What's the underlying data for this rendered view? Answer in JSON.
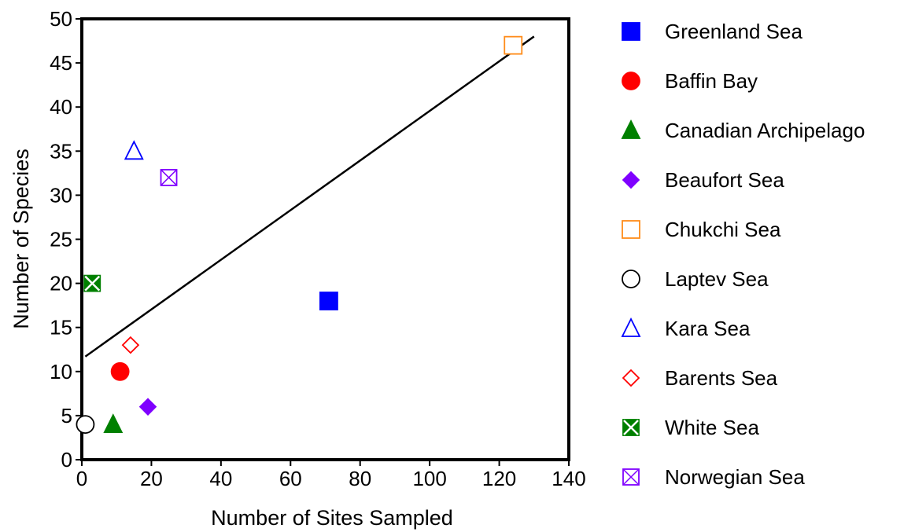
{
  "chart_data": {
    "type": "scatter",
    "title": "",
    "xlabel": "Number of Sites Sampled",
    "ylabel": "Number of Species",
    "xlim": [
      0,
      140
    ],
    "ylim": [
      0,
      50
    ],
    "xticks": [
      0,
      20,
      40,
      60,
      80,
      100,
      120,
      140
    ],
    "yticks": [
      0,
      5,
      10,
      15,
      20,
      25,
      30,
      35,
      40,
      45,
      50
    ],
    "grid": false,
    "legend_position": "right",
    "series": [
      {
        "name": "Greenland Sea",
        "x": 71,
        "y": 18,
        "marker": "square",
        "filled": true,
        "color": "#0000ff"
      },
      {
        "name": "Baffin Bay",
        "x": 11,
        "y": 10,
        "marker": "circle",
        "filled": true,
        "color": "#ff0000"
      },
      {
        "name": "Canadian Archipelago",
        "x": 9,
        "y": 4,
        "marker": "triangle",
        "filled": true,
        "color": "#008000"
      },
      {
        "name": "Beaufort Sea",
        "x": 19,
        "y": 6,
        "marker": "diamond",
        "filled": true,
        "color": "#7f00ff"
      },
      {
        "name": "Chukchi Sea",
        "x": 124,
        "y": 47,
        "marker": "square",
        "filled": false,
        "color": "#ff8c1a"
      },
      {
        "name": "Laptev Sea",
        "x": 1,
        "y": 4,
        "marker": "circle",
        "filled": false,
        "color": "#000000"
      },
      {
        "name": "Kara Sea",
        "x": 15,
        "y": 35,
        "marker": "triangle",
        "filled": false,
        "color": "#0000ff"
      },
      {
        "name": "Barents Sea",
        "x": 14,
        "y": 13,
        "marker": "diamond",
        "filled": false,
        "color": "#ff0000"
      },
      {
        "name": "White Sea",
        "x": 3,
        "y": 20,
        "marker": "xsquare",
        "filled": true,
        "color": "#008000"
      },
      {
        "name": "Norwegian Sea",
        "x": 25,
        "y": 32,
        "marker": "xsquare",
        "filled": false,
        "color": "#7f00ff"
      }
    ],
    "trendline": {
      "x": [
        1,
        130
      ],
      "y": [
        11.7,
        48
      ],
      "color": "#000000"
    }
  }
}
